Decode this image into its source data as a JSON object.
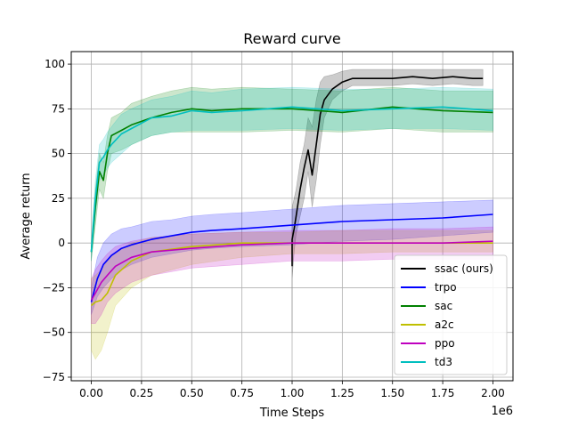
{
  "chart_data": {
    "type": "line",
    "title": "Reward curve",
    "xlabel": "Time Steps",
    "ylabel": "Average return",
    "x_offset_label": "1e6",
    "xlim": [
      -0.1,
      2.1
    ],
    "ylim": [
      -77,
      107
    ],
    "x_ticks": [
      0.0,
      0.25,
      0.5,
      0.75,
      1.0,
      1.25,
      1.5,
      1.75,
      2.0
    ],
    "x_tick_labels": [
      "0.00",
      "0.25",
      "0.50",
      "0.75",
      "1.00",
      "1.25",
      "1.50",
      "1.75",
      "2.00"
    ],
    "y_ticks": [
      -75,
      -50,
      -25,
      0,
      25,
      50,
      75,
      100
    ],
    "y_tick_labels": [
      "−75",
      "−50",
      "−25",
      "0",
      "25",
      "50",
      "75",
      "100"
    ],
    "grid": true,
    "legend_position": "bottom-right",
    "series": [
      {
        "name": "ssac (ours)",
        "color": "#000000",
        "x": [
          1.0,
          1.0,
          1.01,
          1.02,
          1.04,
          1.06,
          1.08,
          1.1,
          1.12,
          1.14,
          1.16,
          1.2,
          1.25,
          1.3,
          1.4,
          1.5,
          1.6,
          1.7,
          1.8,
          1.9,
          1.95
        ],
        "y": [
          -13,
          2,
          8,
          15,
          30,
          42,
          52,
          38,
          55,
          72,
          80,
          86,
          90,
          92,
          92,
          92,
          93,
          92,
          93,
          92,
          92
        ],
        "band": [
          [
            -50,
            12
          ],
          [
            -20,
            20
          ],
          [
            -5,
            25
          ],
          [
            5,
            30
          ],
          [
            15,
            45
          ],
          [
            25,
            55
          ],
          [
            40,
            70
          ],
          [
            20,
            65
          ],
          [
            35,
            80
          ],
          [
            55,
            90
          ],
          [
            70,
            93
          ],
          [
            80,
            94
          ],
          [
            85,
            96
          ],
          [
            88,
            97
          ],
          [
            88,
            97
          ],
          [
            88,
            97
          ],
          [
            89,
            97
          ],
          [
            88,
            97
          ],
          [
            89,
            97
          ],
          [
            88,
            97
          ],
          [
            88,
            97
          ]
        ]
      },
      {
        "name": "trpo",
        "color": "#0000ff",
        "x": [
          0.0,
          0.03,
          0.06,
          0.1,
          0.15,
          0.2,
          0.3,
          0.4,
          0.5,
          0.6,
          0.75,
          1.0,
          1.25,
          1.5,
          1.75,
          2.0
        ],
        "y": [
          -33,
          -20,
          -12,
          -7,
          -3,
          -1,
          2,
          4,
          6,
          7,
          8,
          10,
          12,
          13,
          14,
          16
        ],
        "band": [
          [
            -40,
            -25
          ],
          [
            -30,
            -8
          ],
          [
            -25,
            0
          ],
          [
            -20,
            5
          ],
          [
            -15,
            8
          ],
          [
            -12,
            9
          ],
          [
            -8,
            12
          ],
          [
            -6,
            13
          ],
          [
            -4,
            15
          ],
          [
            -3,
            16
          ],
          [
            -2,
            17
          ],
          [
            -1,
            19
          ],
          [
            1,
            21
          ],
          [
            2,
            22
          ],
          [
            4,
            23
          ],
          [
            6,
            24
          ]
        ]
      },
      {
        "name": "sac",
        "color": "#008000",
        "x": [
          0.0,
          0.02,
          0.04,
          0.06,
          0.08,
          0.1,
          0.15,
          0.2,
          0.3,
          0.4,
          0.5,
          0.6,
          0.75,
          1.0,
          1.25,
          1.5,
          1.75,
          2.0
        ],
        "y": [
          -5,
          20,
          40,
          35,
          50,
          60,
          63,
          66,
          70,
          73,
          75,
          74,
          75,
          75,
          73,
          76,
          74,
          73
        ],
        "band": [
          [
            -10,
            0
          ],
          [
            10,
            30
          ],
          [
            30,
            50
          ],
          [
            25,
            45
          ],
          [
            40,
            60
          ],
          [
            50,
            70
          ],
          [
            52,
            73
          ],
          [
            55,
            78
          ],
          [
            60,
            82
          ],
          [
            62,
            85
          ],
          [
            62,
            87
          ],
          [
            62,
            86
          ],
          [
            62,
            87
          ],
          [
            63,
            86
          ],
          [
            62,
            85
          ],
          [
            64,
            87
          ],
          [
            62,
            85
          ],
          [
            62,
            85
          ]
        ]
      },
      {
        "name": "a2c",
        "color": "#bfbf00",
        "x": [
          0.0,
          0.02,
          0.05,
          0.08,
          0.12,
          0.2,
          0.3,
          0.5,
          0.75,
          1.0,
          1.25,
          1.5,
          1.75,
          2.0
        ],
        "y": [
          -35,
          -33,
          -32,
          -28,
          -18,
          -10,
          -5,
          -2,
          0,
          0,
          0,
          0,
          0,
          0
        ],
        "band": [
          [
            -60,
            -20
          ],
          [
            -65,
            -18
          ],
          [
            -60,
            -15
          ],
          [
            -50,
            -10
          ],
          [
            -35,
            -5
          ],
          [
            -25,
            0
          ],
          [
            -18,
            3
          ],
          [
            -12,
            5
          ],
          [
            -8,
            6
          ],
          [
            -6,
            6
          ],
          [
            -6,
            7
          ],
          [
            -5,
            7
          ],
          [
            -5,
            7
          ],
          [
            -5,
            7
          ]
        ]
      },
      {
        "name": "ppo",
        "color": "#bf00bf",
        "x": [
          0.0,
          0.02,
          0.05,
          0.08,
          0.12,
          0.2,
          0.3,
          0.5,
          0.75,
          1.0,
          1.25,
          1.5,
          1.75,
          2.0
        ],
        "y": [
          -32,
          -28,
          -22,
          -18,
          -13,
          -8,
          -5,
          -3,
          -1,
          0,
          0,
          0,
          0,
          1
        ],
        "band": [
          [
            -45,
            -20
          ],
          [
            -45,
            -15
          ],
          [
            -40,
            -10
          ],
          [
            -33,
            -6
          ],
          [
            -28,
            -2
          ],
          [
            -22,
            1
          ],
          [
            -18,
            3
          ],
          [
            -14,
            5
          ],
          [
            -12,
            6
          ],
          [
            -10,
            7
          ],
          [
            -10,
            7
          ],
          [
            -9,
            8
          ],
          [
            -9,
            8
          ],
          [
            -9,
            9
          ]
        ]
      },
      {
        "name": "td3",
        "color": "#00bfbf",
        "x": [
          0.0,
          0.02,
          0.04,
          0.06,
          0.08,
          0.1,
          0.15,
          0.2,
          0.3,
          0.4,
          0.5,
          0.6,
          0.75,
          1.0,
          1.25,
          1.5,
          1.75,
          2.0
        ],
        "y": [
          -5,
          25,
          45,
          48,
          52,
          55,
          61,
          64,
          70,
          71,
          74,
          73,
          74,
          76,
          74,
          75,
          76,
          74
        ],
        "band": [
          [
            -10,
            2
          ],
          [
            15,
            35
          ],
          [
            35,
            55
          ],
          [
            38,
            58
          ],
          [
            42,
            62
          ],
          [
            45,
            65
          ],
          [
            50,
            72
          ],
          [
            55,
            75
          ],
          [
            60,
            80
          ],
          [
            62,
            82
          ],
          [
            63,
            85
          ],
          [
            63,
            84
          ],
          [
            63,
            86
          ],
          [
            64,
            87
          ],
          [
            63,
            86
          ],
          [
            64,
            86
          ],
          [
            64,
            87
          ],
          [
            63,
            86
          ]
        ]
      }
    ]
  }
}
